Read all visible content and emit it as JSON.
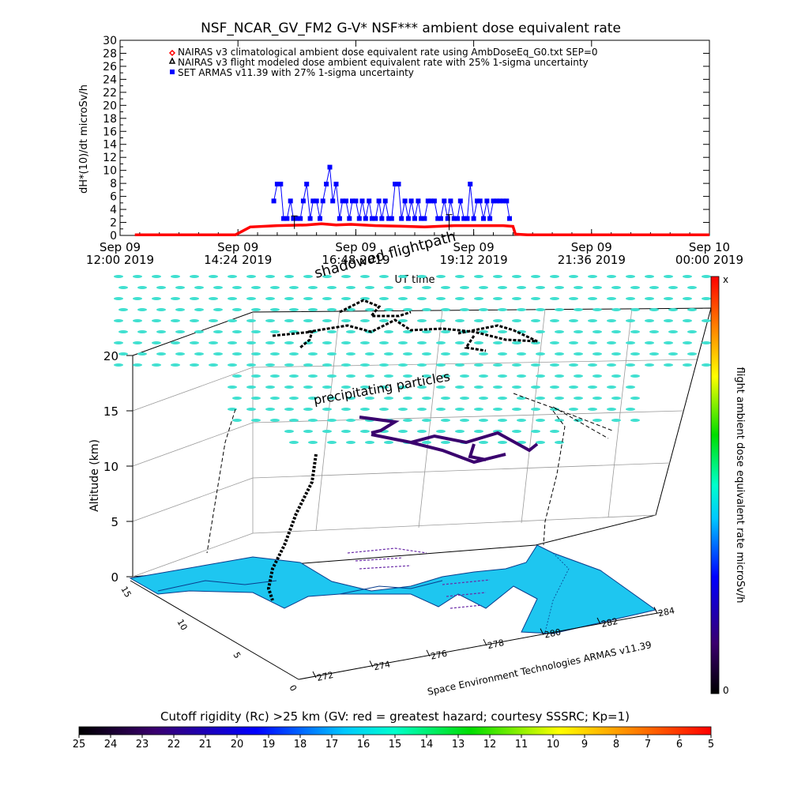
{
  "chart_data": [
    {
      "type": "scatter",
      "title": "NSF_NCAR_GV_FM2 G-V* NSF*** ambient dose equivalent rate",
      "ylabel": "dH*(10)/dt microSv/h",
      "xlabel": "UT time",
      "ylim": [
        0,
        30
      ],
      "yticks": [
        "0",
        "2",
        "4",
        "6",
        "8",
        "10",
        "12",
        "14",
        "16",
        "18",
        "20",
        "22",
        "24",
        "26",
        "28",
        "30"
      ],
      "xticks": [
        {
          "hour": 12.0,
          "line1": "Sep 09",
          "line2": "12:00 2019"
        },
        {
          "hour": 14.4,
          "line1": "Sep 09",
          "line2": "14:24 2019"
        },
        {
          "hour": 16.8,
          "line1": "Sep 09",
          "line2": "16:48 2019"
        },
        {
          "hour": 19.2,
          "line1": "Sep 09",
          "line2": "19:12 2019"
        },
        {
          "hour": 21.6,
          "line1": "Sep 09",
          "line2": "21:36 2019"
        },
        {
          "hour": 24.0,
          "line1": "Sep 10",
          "line2": "00:00 2019"
        }
      ],
      "legend": [
        {
          "symbol": "diamond",
          "color": "#ff0000",
          "label": "NAIRAS v3 climatological ambient dose equivalent rate using AmbDoseEq_G0.txt SEP=0"
        },
        {
          "symbol": "triangle",
          "color": "#000000",
          "label": "NAIRAS v3 flight modeled dose ambient equivalent rate with 25% 1-sigma uncertainty"
        },
        {
          "symbol": "square",
          "color": "#0000ff",
          "label": "SET ARMAS v11.39 with 27% 1-sigma uncertainty"
        }
      ],
      "series": [
        {
          "name": "NAIRAS v3 climatological ambient dose equivalent rate using AmbDoseEq_G0.txt SEP=0",
          "color": "#ff0000",
          "x_hours": [
            12.3,
            13.5,
            14.35,
            14.65,
            15.2,
            15.8,
            16.1,
            16.4,
            16.7,
            17.2,
            17.8,
            18.2,
            18.8,
            19.3,
            19.8,
            20.0,
            20.05,
            20.3,
            22.0,
            24.0
          ],
          "y": [
            0.1,
            0.1,
            0.1,
            1.3,
            1.5,
            1.6,
            1.8,
            1.6,
            1.7,
            1.5,
            1.4,
            1.3,
            1.5,
            1.5,
            1.5,
            1.4,
            0.2,
            0.1,
            0.1,
            0.1
          ]
        },
        {
          "name": "SET ARMAS v11.39 with 27% 1-sigma uncertainty",
          "color": "#0000ff",
          "x_hours": [
            15.13,
            15.2,
            15.27,
            15.33,
            15.4,
            15.47,
            15.53,
            15.6,
            15.67,
            15.73,
            15.8,
            15.87,
            15.93,
            16.0,
            16.07,
            16.13,
            16.2,
            16.27,
            16.33,
            16.4,
            16.47,
            16.53,
            16.6,
            16.67,
            16.73,
            16.8,
            16.87,
            16.93,
            17.0,
            17.07,
            17.13,
            17.2,
            17.27,
            17.33,
            17.4,
            17.47,
            17.53,
            17.6,
            17.67,
            17.73,
            17.8,
            17.87,
            17.93,
            18.0,
            18.07,
            18.13,
            18.2,
            18.27,
            18.33,
            18.4,
            18.47,
            18.53,
            18.6,
            18.67,
            18.73,
            18.8,
            18.87,
            18.93,
            19.0,
            19.07,
            19.13,
            19.2,
            19.27,
            19.33,
            19.4,
            19.47,
            19.53,
            19.6,
            19.67,
            19.73,
            19.8,
            19.87,
            19.93
          ],
          "y": [
            5.3,
            7.9,
            7.9,
            2.6,
            2.6,
            5.3,
            2.6,
            2.6,
            2.6,
            5.3,
            7.9,
            2.6,
            5.3,
            5.3,
            2.6,
            5.3,
            7.9,
            10.5,
            5.3,
            7.9,
            2.6,
            5.3,
            5.3,
            2.6,
            5.3,
            5.3,
            2.6,
            5.3,
            2.6,
            5.3,
            2.6,
            2.6,
            5.3,
            2.6,
            5.3,
            2.6,
            2.6,
            7.9,
            7.9,
            2.6,
            5.3,
            2.6,
            5.3,
            2.6,
            5.3,
            2.6,
            2.6,
            5.3,
            5.3,
            5.3,
            2.6,
            2.6,
            5.3,
            2.6,
            5.3,
            2.6,
            2.6,
            5.3,
            2.6,
            2.6,
            7.9,
            2.6,
            5.3,
            5.3,
            2.6,
            5.3,
            2.6,
            5.3,
            5.3,
            5.3,
            5.3,
            5.3,
            2.6
          ]
        }
      ],
      "error_bars": [
        {
          "hour": 15.55,
          "y": 2.0,
          "err": 1.0
        },
        {
          "hour": 18.7,
          "y": 2.0,
          "err": 1.2
        }
      ]
    },
    {
      "type": "scatter",
      "zlabel": "Altitude (km)",
      "zticks": [
        "0",
        "5",
        "10",
        "15",
        "20"
      ],
      "x_ticks": [
        "272",
        "274",
        "276",
        "278",
        "280",
        "282",
        "284"
      ],
      "y_ticks": [
        "0",
        "5",
        "10",
        "15"
      ],
      "annotations": [
        "shadowed flightpath",
        "precipitating particles"
      ],
      "credit": "Space Environment Technologies ARMAS v11.39",
      "colorbar": {
        "label": "flight ambient dose equivalent rate microSv/h",
        "top": "x",
        "bottom": "0"
      }
    }
  ],
  "colorbar": {
    "title": "Cutoff rigidity (Rc) >25 km (GV: red = greatest hazard; courtesy SSSRC; Kp=1)",
    "ticks": [
      "25",
      "24",
      "23",
      "22",
      "21",
      "20",
      "19",
      "18",
      "17",
      "16",
      "15",
      "14",
      "13",
      "12",
      "11",
      "10",
      "9",
      "8",
      "7",
      "6",
      "5"
    ]
  }
}
